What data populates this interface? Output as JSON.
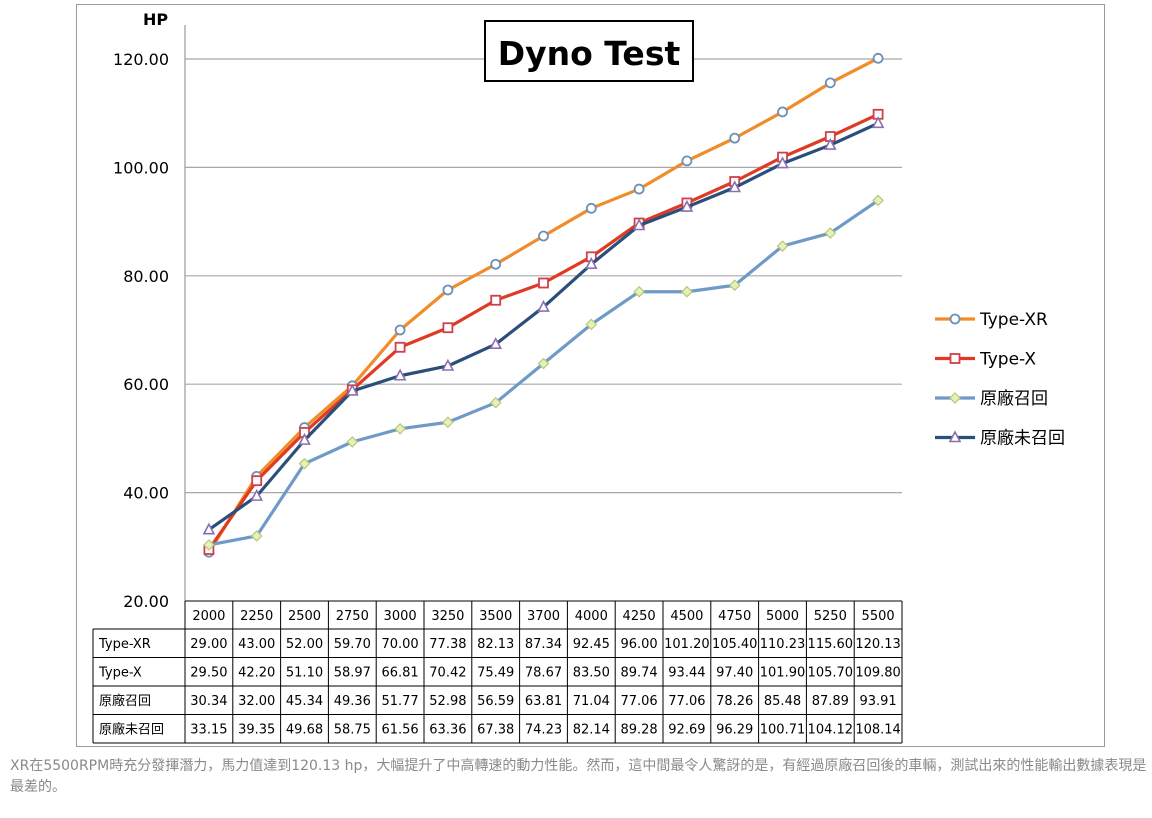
{
  "chart_data": {
    "type": "line",
    "title": "Dyno Test",
    "ylabel": "HP",
    "xlabel": "",
    "ylim": [
      20,
      120
    ],
    "yticks": [
      "20.00",
      "40.00",
      "60.00",
      "80.00",
      "100.00",
      "120.00"
    ],
    "grid": true,
    "legend": "right",
    "categories": [
      "2000",
      "2250",
      "2500",
      "2750",
      "3000",
      "3250",
      "3500",
      "3700",
      "4000",
      "4250",
      "4500",
      "4750",
      "5000",
      "5250",
      "5500"
    ],
    "series": [
      {
        "name": "Type-XR",
        "color": "#f08c2a",
        "marker": "circle",
        "values": [
          29.0,
          43.0,
          52.0,
          59.7,
          70.0,
          77.38,
          82.13,
          87.34,
          92.45,
          96.0,
          101.2,
          105.4,
          110.23,
          115.6,
          120.13
        ],
        "labels": [
          "29.00",
          "43.00",
          "52.00",
          "59.70",
          "70.00",
          "77.38",
          "82.13",
          "87.34",
          "92.45",
          "96.00",
          "101.20",
          "105.40",
          "110.23",
          "115.60",
          "120.13"
        ]
      },
      {
        "name": "Type-X",
        "color": "#e03a22",
        "marker": "square",
        "values": [
          29.5,
          42.2,
          51.1,
          58.97,
          66.81,
          70.42,
          75.49,
          78.67,
          83.5,
          89.74,
          93.44,
          97.4,
          101.9,
          105.7,
          109.8
        ],
        "labels": [
          "29.50",
          "42.20",
          "51.10",
          "58.97",
          "66.81",
          "70.42",
          "75.49",
          "78.67",
          "83.50",
          "89.74",
          "93.44",
          "97.40",
          "101.90",
          "105.70",
          "109.80"
        ]
      },
      {
        "name": "原廠召回",
        "color": "#6f9ac8",
        "marker": "diamond",
        "values": [
          30.34,
          32.0,
          45.34,
          49.36,
          51.77,
          52.98,
          56.59,
          63.81,
          71.04,
          77.06,
          77.06,
          78.26,
          85.48,
          87.89,
          93.91
        ],
        "labels": [
          "30.34",
          "32.00",
          "45.34",
          "49.36",
          "51.77",
          "52.98",
          "56.59",
          "63.81",
          "71.04",
          "77.06",
          "77.06",
          "78.26",
          "85.48",
          "87.89",
          "93.91"
        ]
      },
      {
        "name": "原廠未召回",
        "color": "#2b4f7a",
        "marker": "triangle",
        "values": [
          33.15,
          39.35,
          49.68,
          58.75,
          61.56,
          63.36,
          67.38,
          74.23,
          82.14,
          89.28,
          92.69,
          96.29,
          100.71,
          104.12,
          108.14
        ],
        "labels": [
          "33.15",
          "39.35",
          "49.68",
          "58.75",
          "61.56",
          "63.36",
          "67.38",
          "74.23",
          "82.14",
          "89.28",
          "92.69",
          "96.29",
          "100.71",
          "104.12",
          "108.14"
        ]
      }
    ]
  },
  "caption": "XR在5500RPM時充分發揮潛力，馬力值達到120.13 hp，大幅提升了中高轉速的動力性能。然而，這中間最令人驚訝的是，有經過原廠召回後的車輛，測試出來的性能輸出數據表現是最差的。"
}
